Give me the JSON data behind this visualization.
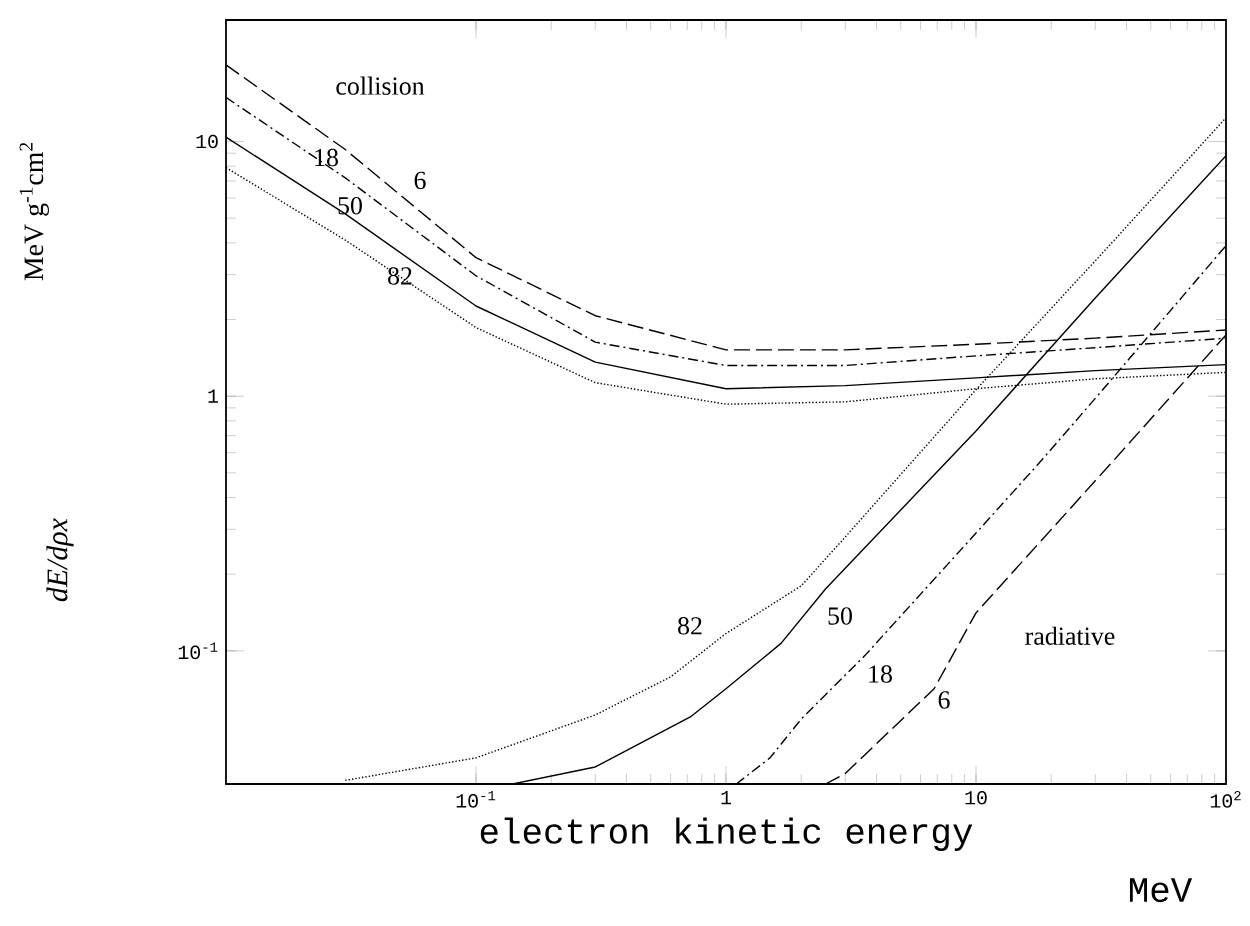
{
  "chart_data": {
    "type": "line",
    "xlabel": "electron kinetic energy",
    "ylabel": "MeV g$^{-1}$cm$^{2}$",
    "log": "xy",
    "grid": false,
    "xlim": [
      0.01,
      100
    ],
    "ylim": [
      0.03,
      30
    ],
    "xticks": [
      {
        "value": 0.1,
        "label": "10$^{-1}$"
      },
      {
        "value": 1,
        "label": "1"
      },
      {
        "value": 10,
        "label": "10"
      },
      {
        "value": 100,
        "label": "10$^{2}$"
      }
    ],
    "yticks": [
      {
        "value": 0.1,
        "label": "10$^{-1}$"
      },
      {
        "value": 1,
        "label": "1"
      },
      {
        "value": 10,
        "label": "10"
      }
    ],
    "series": [
      {
        "color": "#000000",
        "line_style": "longdashed",
        "x": [
          0.01,
          0.03,
          0.1,
          0.3,
          1,
          3,
          10,
          30,
          100
        ],
        "values": [
          20,
          9.3,
          3.5,
          2.07,
          1.52,
          1.52,
          1.6,
          1.69,
          1.82
        ]
      },
      {
        "color": "#000000",
        "line_style": "dashdot",
        "x": [
          0.01,
          0.03,
          0.1,
          0.3,
          1,
          3,
          10,
          30,
          100
        ],
        "values": [
          14.9,
          7.2,
          2.97,
          1.63,
          1.32,
          1.32,
          1.44,
          1.55,
          1.69
        ]
      },
      {
        "color": "#000000",
        "line_style": "solid",
        "x": [
          0.01,
          0.03,
          0.1,
          0.3,
          1,
          3,
          10,
          30,
          100
        ],
        "values": [
          10.4,
          5.2,
          2.26,
          1.36,
          1.07,
          1.1,
          1.18,
          1.26,
          1.33
        ]
      },
      {
        "color": "#000000",
        "line_style": "dotted",
        "x": [
          0.01,
          0.03,
          0.1,
          0.3,
          1,
          3,
          10,
          30,
          100
        ],
        "values": [
          7.9,
          4.1,
          1.86,
          1.13,
          0.93,
          0.95,
          1.07,
          1.17,
          1.24
        ]
      },
      {
        "color": "#000000",
        "line_style": "dotted",
        "x": [
          0.03,
          0.1,
          0.3,
          0.6,
          1,
          2,
          3,
          10,
          30,
          100
        ],
        "values": [
          0.031,
          0.038,
          0.056,
          0.079,
          0.117,
          0.18,
          0.28,
          1.06,
          3.4,
          12.4
        ]
      },
      {
        "color": "#000000",
        "line_style": "solid",
        "x": [
          0.14,
          0.3,
          0.72,
          1,
          1.66,
          2.5,
          7.6,
          10,
          30,
          100
        ],
        "values": [
          0.03,
          0.035,
          0.055,
          0.071,
          0.107,
          0.175,
          0.55,
          0.73,
          2.43,
          8.8
        ]
      },
      {
        "color": "#000000",
        "line_style": "dashdot",
        "x": [
          1.1,
          1.5,
          2,
          3.6,
          10,
          18,
          30,
          100
        ],
        "values": [
          0.03,
          0.038,
          0.054,
          0.096,
          0.29,
          0.55,
          0.98,
          3.9
        ]
      },
      {
        "color": "#000000",
        "line_style": "longdashed",
        "x": [
          2.5,
          3,
          6.8,
          10,
          35,
          100
        ],
        "values": [
          0.03,
          0.033,
          0.071,
          0.141,
          0.55,
          1.74
        ]
      }
    ],
    "annotations": [
      "collision",
      "6",
      "18",
      "50",
      "82",
      "82",
      "50",
      "18",
      "6",
      "radiative",
      "dE/dρx",
      "MeV"
    ]
  }
}
